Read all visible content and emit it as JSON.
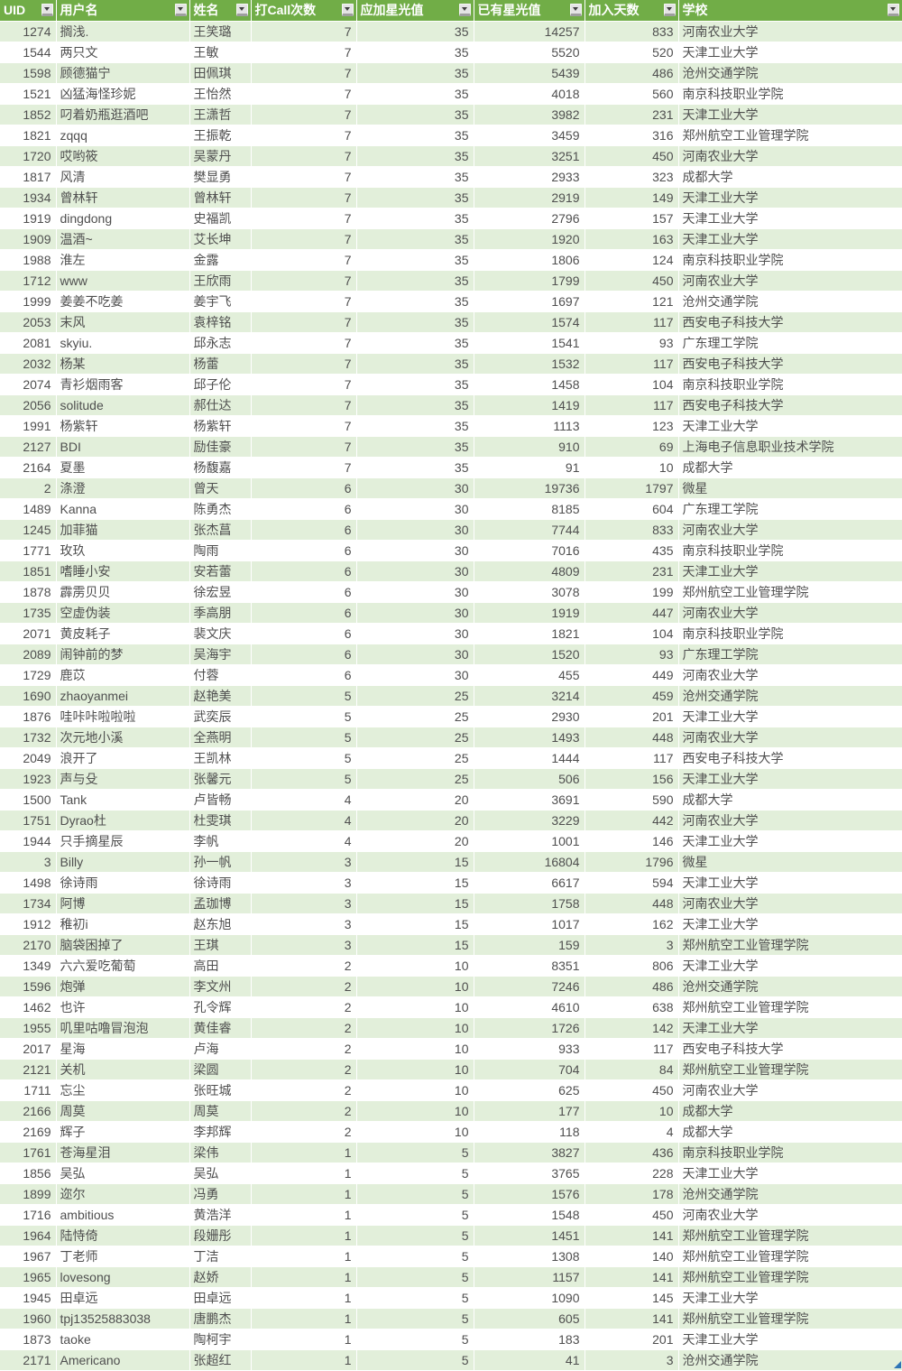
{
  "table": {
    "columns": [
      {
        "key": "uid",
        "label": "UID",
        "align": "right"
      },
      {
        "key": "username",
        "label": "用户名",
        "align": "left"
      },
      {
        "key": "name",
        "label": "姓名",
        "align": "left"
      },
      {
        "key": "call_count",
        "label": "打Call次数",
        "align": "right"
      },
      {
        "key": "star_to_add",
        "label": "应加星光值",
        "align": "right"
      },
      {
        "key": "star_current",
        "label": "已有星光值",
        "align": "right"
      },
      {
        "key": "days_joined",
        "label": "加入天数",
        "align": "right"
      },
      {
        "key": "school",
        "label": "学校",
        "align": "left"
      }
    ],
    "rows": [
      [
        1274,
        "搁浅.",
        "王笑璐",
        7,
        35,
        14257,
        833,
        "河南农业大学"
      ],
      [
        1544,
        "两只文",
        "王敏",
        7,
        35,
        5520,
        520,
        "天津工业大学"
      ],
      [
        1598,
        "顾德猫宁",
        "田佩琪",
        7,
        35,
        5439,
        486,
        "沧州交通学院"
      ],
      [
        1521,
        "凶猛海怪珍妮",
        "王怡然",
        7,
        35,
        4018,
        560,
        "南京科技职业学院"
      ],
      [
        1852,
        "叼着奶瓶逛酒吧",
        "王潇哲",
        7,
        35,
        3982,
        231,
        "天津工业大学"
      ],
      [
        1821,
        "zqqq",
        "王振乾",
        7,
        35,
        3459,
        316,
        "郑州航空工业管理学院"
      ],
      [
        1720,
        "哎哟筱",
        "吴蒙丹",
        7,
        35,
        3251,
        450,
        "河南农业大学"
      ],
      [
        1817,
        "风清",
        "樊显勇",
        7,
        35,
        2933,
        323,
        "成都大学"
      ],
      [
        1934,
        "曾林轩",
        "曾林轩",
        7,
        35,
        2919,
        149,
        "天津工业大学"
      ],
      [
        1919,
        "dingdong",
        "史福凯",
        7,
        35,
        2796,
        157,
        "天津工业大学"
      ],
      [
        1909,
        "温酒~",
        "艾长坤",
        7,
        35,
        1920,
        163,
        "天津工业大学"
      ],
      [
        1988,
        "淮左",
        "金露",
        7,
        35,
        1806,
        124,
        "南京科技职业学院"
      ],
      [
        1712,
        "www",
        "王欣雨",
        7,
        35,
        1799,
        450,
        "河南农业大学"
      ],
      [
        1999,
        "姜姜不吃姜",
        "姜宇飞",
        7,
        35,
        1697,
        121,
        "沧州交通学院"
      ],
      [
        2053,
        "末风",
        "袁梓铭",
        7,
        35,
        1574,
        117,
        "西安电子科技大学"
      ],
      [
        2081,
        "skyiu.",
        "邱永志",
        7,
        35,
        1541,
        93,
        "广东理工学院"
      ],
      [
        2032,
        "杨某",
        "杨蕾",
        7,
        35,
        1532,
        117,
        "西安电子科技大学"
      ],
      [
        2074,
        "青衫烟雨客",
        "邱子伦",
        7,
        35,
        1458,
        104,
        "南京科技职业学院"
      ],
      [
        2056,
        "solitude",
        "郝仕达",
        7,
        35,
        1419,
        117,
        "西安电子科技大学"
      ],
      [
        1991,
        "杨紫轩",
        "杨紫轩",
        7,
        35,
        1113,
        123,
        "天津工业大学"
      ],
      [
        2127,
        "BDI",
        "励佳豪",
        7,
        35,
        910,
        69,
        "上海电子信息职业技术学院"
      ],
      [
        2164,
        "夏墨",
        "杨馥嘉",
        7,
        35,
        91,
        10,
        "成都大学"
      ],
      [
        2,
        "涤澄",
        "曾天",
        6,
        30,
        19736,
        1797,
        "微星"
      ],
      [
        1489,
        "Kanna",
        "陈勇杰",
        6,
        30,
        8185,
        604,
        "广东理工学院"
      ],
      [
        1245,
        "加菲猫",
        "张杰菖",
        6,
        30,
        7744,
        833,
        "河南农业大学"
      ],
      [
        1771,
        "玫玖",
        "陶雨",
        6,
        30,
        7016,
        435,
        "南京科技职业学院"
      ],
      [
        1851,
        "嗜睡小安",
        "安若蕾",
        6,
        30,
        4809,
        231,
        "天津工业大学"
      ],
      [
        1878,
        "霹雳贝贝",
        "徐宏昱",
        6,
        30,
        3078,
        199,
        "郑州航空工业管理学院"
      ],
      [
        1735,
        "空虚伪装",
        "季高朋",
        6,
        30,
        1919,
        447,
        "河南农业大学"
      ],
      [
        2071,
        "黄皮耗子",
        "裴文庆",
        6,
        30,
        1821,
        104,
        "南京科技职业学院"
      ],
      [
        2089,
        "闹钟前的梦",
        "吴海宇",
        6,
        30,
        1520,
        93,
        "广东理工学院"
      ],
      [
        1729,
        "鹿苡",
        "付蓉",
        6,
        30,
        455,
        449,
        "河南农业大学"
      ],
      [
        1690,
        "zhaoyanmei",
        "赵艳美",
        5,
        25,
        3214,
        459,
        "沧州交通学院"
      ],
      [
        1876,
        "哇咔咔啦啦啦",
        "武奕辰",
        5,
        25,
        2930,
        201,
        "天津工业大学"
      ],
      [
        1732,
        "次元地小溪",
        "全燕明",
        5,
        25,
        1493,
        448,
        "河南农业大学"
      ],
      [
        2049,
        "浪开了",
        "王凯林",
        5,
        25,
        1444,
        117,
        "西安电子科技大学"
      ],
      [
        1923,
        "声与殳",
        "张馨元",
        5,
        25,
        506,
        156,
        "天津工业大学"
      ],
      [
        1500,
        "Tank",
        "卢皆畅",
        4,
        20,
        3691,
        590,
        "成都大学"
      ],
      [
        1751,
        "Dyrao杜",
        "杜雯琪",
        4,
        20,
        3229,
        442,
        "河南农业大学"
      ],
      [
        1944,
        "只手摘星辰",
        "李帆",
        4,
        20,
        1001,
        146,
        "天津工业大学"
      ],
      [
        3,
        "Billy",
        "孙一帆",
        3,
        15,
        16804,
        1796,
        "微星"
      ],
      [
        1498,
        "徐诗雨",
        "徐诗雨",
        3,
        15,
        6617,
        594,
        "天津工业大学"
      ],
      [
        1734,
        "阿博",
        "孟珈博",
        3,
        15,
        1758,
        448,
        "河南农业大学"
      ],
      [
        1912,
        "稚初i",
        "赵东旭",
        3,
        15,
        1017,
        162,
        "天津工业大学"
      ],
      [
        2170,
        "脑袋困掉了",
        "王琪",
        3,
        15,
        159,
        3,
        "郑州航空工业管理学院"
      ],
      [
        1349,
        "六六爱吃葡萄",
        "高田",
        2,
        10,
        8351,
        806,
        "天津工业大学"
      ],
      [
        1596,
        "炮弹",
        "李文州",
        2,
        10,
        7246,
        486,
        "沧州交通学院"
      ],
      [
        1462,
        "也许",
        "孔令辉",
        2,
        10,
        4610,
        638,
        "郑州航空工业管理学院"
      ],
      [
        1955,
        "叽里咕噜冒泡泡",
        "黄佳睿",
        2,
        10,
        1726,
        142,
        "天津工业大学"
      ],
      [
        2017,
        "星海",
        "卢海",
        2,
        10,
        933,
        117,
        "西安电子科技大学"
      ],
      [
        2121,
        "关机",
        "梁圆",
        2,
        10,
        704,
        84,
        "郑州航空工业管理学院"
      ],
      [
        1711,
        "忘尘",
        "张旺城",
        2,
        10,
        625,
        450,
        "河南农业大学"
      ],
      [
        2166,
        "周莫",
        "周莫",
        2,
        10,
        177,
        10,
        "成都大学"
      ],
      [
        2169,
        "辉子",
        "李邦辉",
        2,
        10,
        118,
        4,
        "成都大学"
      ],
      [
        1761,
        "苍海星泪",
        "梁伟",
        1,
        5,
        3827,
        436,
        "南京科技职业学院"
      ],
      [
        1856,
        "吴弘",
        "吴弘",
        1,
        5,
        3765,
        228,
        "天津工业大学"
      ],
      [
        1899,
        "迩尔",
        "冯勇",
        1,
        5,
        1576,
        178,
        "沧州交通学院"
      ],
      [
        1716,
        "ambitious",
        "黄浩洋",
        1,
        5,
        1548,
        450,
        "河南农业大学"
      ],
      [
        1964,
        "陆恃倚",
        "段姗彤",
        1,
        5,
        1451,
        141,
        "郑州航空工业管理学院"
      ],
      [
        1967,
        "丁老师",
        "丁洁",
        1,
        5,
        1308,
        140,
        "郑州航空工业管理学院"
      ],
      [
        1965,
        "lovesong",
        "赵娇",
        1,
        5,
        1157,
        141,
        "郑州航空工业管理学院"
      ],
      [
        1945,
        "田卓远",
        "田卓远",
        1,
        5,
        1090,
        145,
        "天津工业大学"
      ],
      [
        1960,
        "tpj13525883038",
        "唐鹏杰",
        1,
        5,
        605,
        141,
        "郑州航空工业管理学院"
      ],
      [
        1873,
        "taoke",
        "陶柯宇",
        1,
        5,
        183,
        201,
        "天津工业大学"
      ],
      [
        2171,
        "Americano",
        "张超红",
        1,
        5,
        41,
        3,
        "沧州交通学院"
      ]
    ]
  },
  "colors": {
    "header_bg": "#71AD47",
    "header_text": "#FFFFFF",
    "band_green": "#E2EFDA",
    "band_white": "#FFFFFF",
    "cell_text": "#4F4F4F",
    "corner_handle": "#2E75B6"
  },
  "icons": {
    "filter": "filter-dropdown-icon",
    "corner": "table-resize-handle-icon"
  }
}
